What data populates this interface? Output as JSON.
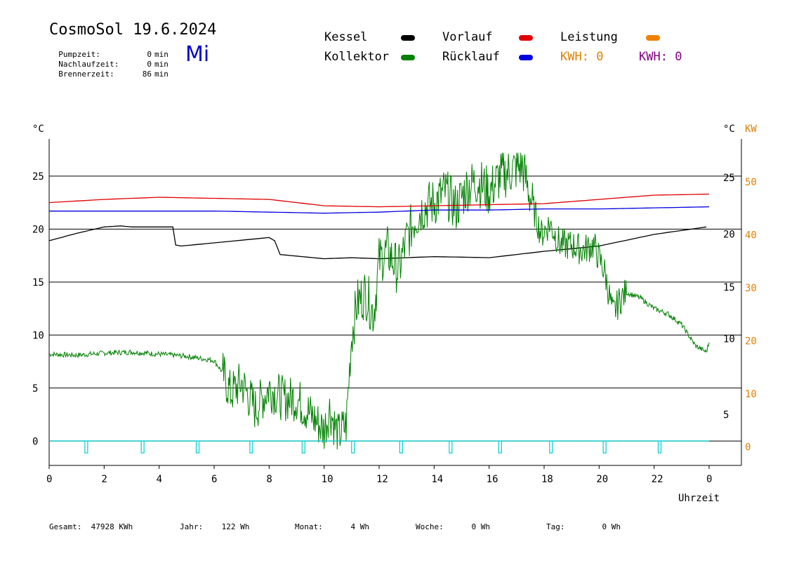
{
  "header": {
    "title": "CosmoSol 19.6.2024",
    "weekday": "Mi",
    "stats": [
      {
        "label": "Pumpzeit:",
        "value": "0",
        "unit": "min"
      },
      {
        "label": "Nachlaufzeit:",
        "value": "0",
        "unit": "min"
      },
      {
        "label": "Brennerzeit:",
        "value": "86",
        "unit": "min"
      }
    ]
  },
  "legend": {
    "kessel": {
      "label": "Kessel",
      "color": "#000000"
    },
    "kollektor": {
      "label": "Kollektor",
      "color": "#008000"
    },
    "vorlauf": {
      "label": "Vorlauf",
      "color": "#e00000"
    },
    "ruecklauf": {
      "label": "Rücklauf",
      "color": "#0000e0"
    },
    "leistung": {
      "label": "Leistung",
      "color": "#f08000"
    },
    "kwh1": {
      "label": "KWH:",
      "value": "0",
      "color": "#e08000"
    },
    "kwh2": {
      "label": "KWH:",
      "value": "0",
      "color": "#800080"
    }
  },
  "footer": [
    {
      "label": "Gesamt:",
      "value": "47928 KWh"
    },
    {
      "label": "Jahr:",
      "value": "122 Wh"
    },
    {
      "label": "Monat:",
      "value": "4 Wh"
    },
    {
      "label": "Woche:",
      "value": "0 Wh"
    },
    {
      "label": "Tag:",
      "value": "0 Wh"
    }
  ],
  "chart_data": {
    "type": "line",
    "xlabel": "Uhrzeit",
    "ylabel_left": "°C",
    "ylabel_right": "°C",
    "ylabel_right2": "KW",
    "x_ticks": [
      "0",
      "2",
      "4",
      "6",
      "8",
      "10",
      "12",
      "14",
      "16",
      "18",
      "20",
      "22",
      "0"
    ],
    "xlim": [
      0,
      24
    ],
    "ylim": [
      -2.3,
      28.5
    ],
    "y_ticks_left": [
      "0",
      "5",
      "10",
      "15",
      "20",
      "25"
    ],
    "y_ticks_right_c": [
      "5",
      "10",
      "15",
      "20",
      "25"
    ],
    "y_ticks_right_kw": [
      "0",
      "10",
      "20",
      "30",
      "40",
      "50"
    ],
    "grid": "horizontal",
    "series": [
      {
        "name": "Kessel",
        "color": "#000000",
        "x": [
          0,
          1,
          2,
          2.6,
          3,
          4.5,
          4.6,
          4.8,
          6,
          8,
          8.2,
          8.4,
          10,
          11,
          12,
          14,
          16,
          18,
          20,
          22,
          23.9
        ],
        "y": [
          18.9,
          19.6,
          20.2,
          20.3,
          20.2,
          20.2,
          18.5,
          18.4,
          18.7,
          19.2,
          18.9,
          17.6,
          17.2,
          17.3,
          17.2,
          17.4,
          17.3,
          17.9,
          18.4,
          19.5,
          20.2
        ]
      },
      {
        "name": "Kollektor",
        "color": "#008000",
        "x": [
          0,
          1,
          2,
          3,
          4,
          5,
          6,
          6.3,
          6.6,
          7,
          7.5,
          8,
          8.5,
          9,
          9.5,
          10,
          10.2,
          10.5,
          10.8,
          11,
          11.2,
          11.5,
          11.8,
          12,
          12.3,
          12.7,
          13,
          13.3,
          13.6,
          14,
          14.4,
          14.8,
          15.2,
          15.6,
          16,
          16.4,
          16.8,
          17.2,
          17.6,
          17.9,
          18.2,
          18.6,
          19,
          19.4,
          19.8,
          20.2,
          20.5,
          20.8,
          21,
          21.5,
          22,
          22.5,
          23,
          23.5,
          23.9,
          24
        ],
        "y": [
          8.2,
          8.1,
          8.3,
          8.4,
          8.2,
          8.0,
          7.6,
          6.5,
          4.5,
          5.5,
          3.0,
          5.0,
          4.0,
          4.0,
          2.5,
          1.0,
          3.0,
          0.5,
          1.5,
          10.0,
          13.0,
          14.0,
          12.0,
          17.0,
          18.0,
          16.0,
          19.0,
          21.0,
          22.0,
          22.5,
          23.5,
          22.0,
          24.0,
          24.5,
          23.5,
          25.0,
          25.5,
          26.0,
          22.0,
          19.5,
          20.5,
          18.5,
          18.5,
          18.0,
          18.5,
          16.0,
          12.0,
          13.5,
          14.0,
          13.5,
          12.5,
          12.0,
          11.0,
          9.0,
          8.4,
          9.3
        ]
      },
      {
        "name": "Vorlauf",
        "color": "#e00000",
        "x": [
          0,
          2,
          4,
          6,
          8,
          9,
          10,
          12,
          14,
          16,
          18,
          20,
          22,
          24
        ],
        "y": [
          22.5,
          22.8,
          23.0,
          22.9,
          22.8,
          22.5,
          22.2,
          22.1,
          22.2,
          22.3,
          22.4,
          22.8,
          23.2,
          23.3
        ]
      },
      {
        "name": "Rücklauf",
        "color": "#0000e0",
        "x": [
          0,
          2,
          4,
          6,
          8,
          10,
          12,
          14,
          16,
          18,
          20,
          22,
          24
        ],
        "y": [
          21.7,
          21.7,
          21.7,
          21.7,
          21.6,
          21.5,
          21.6,
          21.8,
          21.8,
          21.9,
          21.9,
          22.0,
          22.1
        ]
      }
    ],
    "pump_markers_x": [
      1.35,
      3.4,
      5.4,
      7.35,
      9.25,
      11.05,
      12.8,
      14.6,
      16.4,
      18.25,
      20.2,
      22.2
    ]
  }
}
